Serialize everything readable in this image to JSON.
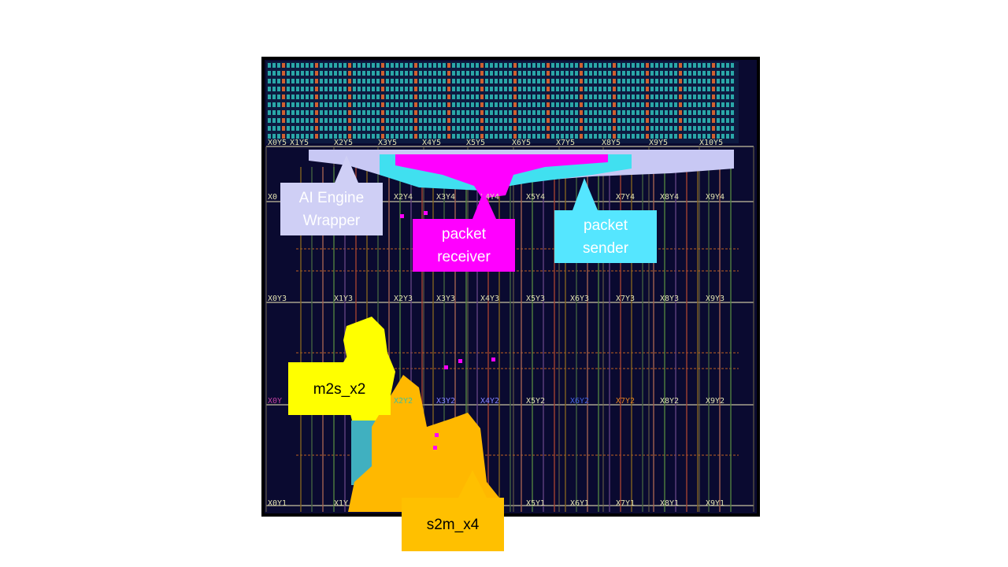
{
  "device": {
    "colors": {
      "background": "#0a0a30",
      "border": "#000000",
      "grid_line": "#c8c0a0",
      "coord_text": "#e0e0b0",
      "ai_engine_wrapper": "#c8c8f4",
      "packet_receiver": "#ff00ff",
      "packet_sender": "#40e0f0",
      "m2s": "#ffff00",
      "s2m": "#ffb800",
      "tile_array": "#2aa7a8"
    },
    "row_y5_labels": [
      "X0Y5",
      "X1Y5",
      "X2Y5",
      "X3Y5",
      "X4Y5",
      "X5Y5",
      "X6Y5",
      "X7Y5",
      "X8Y5",
      "X9Y5",
      "X10Y5"
    ],
    "row_y4_labels": [
      "X0",
      "X2Y4",
      "X3Y4",
      "X4Y4",
      "X5Y4",
      "X7Y4",
      "X8Y4",
      "X9Y4"
    ],
    "row_y3_labels": [
      "X0Y3",
      "X1Y3",
      "X2Y3",
      "X3Y3",
      "X4Y3",
      "X5Y3",
      "X6Y3",
      "X7Y3",
      "X8Y3",
      "X9Y3"
    ],
    "row_y2_labels": [
      "X0Y",
      "X2Y2",
      "X3Y2",
      "X4Y2",
      "X5Y2",
      "X6Y2",
      "X7Y2",
      "X8Y2",
      "X9Y2"
    ],
    "row_y1_labels": [
      "X0Y1",
      "X1Y",
      "X5Y1",
      "X6Y1",
      "X7Y1",
      "X8Y1",
      "X9Y1"
    ]
  },
  "callouts": {
    "ai_engine_wrapper": {
      "text": "AI Engine\nWrapper",
      "color": "#cfcff5",
      "text_color": "#ffffff"
    },
    "packet_receiver": {
      "text": "packet\nreceiver",
      "color": "#ff00ff",
      "text_color": "#ffffff"
    },
    "packet_sender": {
      "text": "packet\nsender",
      "color": "#55e6ff",
      "text_color": "#ffffff"
    },
    "m2s_x2": {
      "text": "m2s_x2",
      "color": "#ffff00",
      "text_color": "#000000"
    },
    "s2m_x4": {
      "text": "s2m_x4",
      "color": "#ffc000",
      "text_color": "#000000"
    }
  }
}
